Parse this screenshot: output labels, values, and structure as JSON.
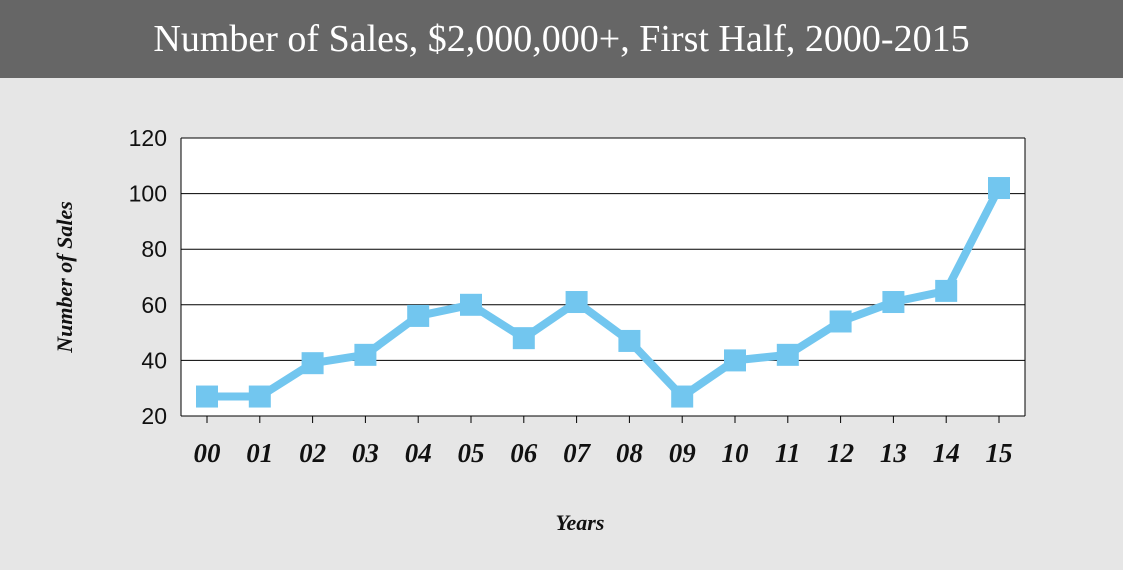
{
  "header": {
    "title": "Number of Sales, $2,000,000+, First Half, 2000-2015"
  },
  "colors": {
    "line": "#72c6ef",
    "header_bg": "#666666",
    "page_bg": "#e6e6e6",
    "plot_bg": "#ffffff"
  },
  "chart_data": {
    "type": "line",
    "title": "Number of Sales, $2,000,000+, First Half, 2000-2015",
    "xlabel": "Years",
    "ylabel": "Number of Sales",
    "categories": [
      "00",
      "01",
      "02",
      "03",
      "04",
      "05",
      "06",
      "07",
      "08",
      "09",
      "10",
      "11",
      "12",
      "13",
      "14",
      "15"
    ],
    "values": [
      27,
      27,
      39,
      42,
      56,
      60,
      48,
      61,
      47,
      27,
      40,
      42,
      54,
      61,
      65,
      102
    ],
    "ylim": [
      20,
      120
    ],
    "yticks": [
      20,
      40,
      60,
      80,
      100,
      120
    ],
    "grid": true,
    "marker": "square"
  }
}
